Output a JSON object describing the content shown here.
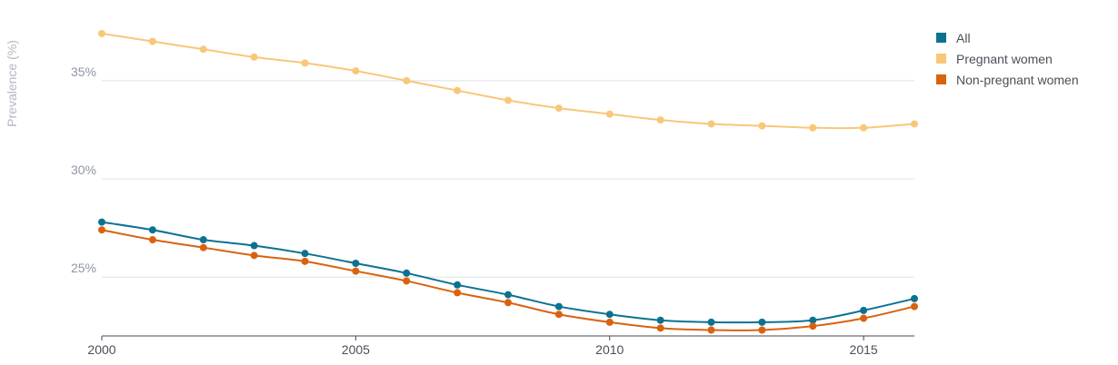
{
  "chart_data": {
    "type": "line",
    "title": "",
    "xlabel": "",
    "ylabel": "Prevalence (%)",
    "x": [
      2000,
      2001,
      2002,
      2003,
      2004,
      2005,
      2006,
      2007,
      2008,
      2009,
      2010,
      2011,
      2012,
      2013,
      2014,
      2015,
      2016
    ],
    "xlim": [
      2000,
      2016
    ],
    "ylim": [
      22.0,
      38.0
    ],
    "x_ticks": [
      2000,
      2005,
      2010,
      2015
    ],
    "x_tick_labels": [
      "2000",
      "2005",
      "2010",
      "2015"
    ],
    "y_ticks": [
      25,
      30,
      35
    ],
    "y_tick_labels": [
      "25%",
      "30%",
      "35%"
    ],
    "grid": true,
    "legend_position": "top-right",
    "series": [
      {
        "name": "All",
        "color": "#0d7291",
        "values": [
          27.8,
          27.4,
          26.9,
          26.6,
          26.2,
          25.7,
          25.2,
          24.6,
          24.1,
          23.5,
          23.1,
          22.8,
          22.7,
          22.7,
          22.8,
          23.3,
          23.9
        ]
      },
      {
        "name": "Pregnant women",
        "color": "#f8c77a",
        "values": [
          37.4,
          37.0,
          36.6,
          36.2,
          35.9,
          35.5,
          35.0,
          34.5,
          34.0,
          33.6,
          33.3,
          33.0,
          32.8,
          32.7,
          32.6,
          32.6,
          32.8
        ]
      },
      {
        "name": "Non-pregnant women",
        "color": "#d9620f",
        "values": [
          27.4,
          26.9,
          26.5,
          26.1,
          25.8,
          25.3,
          24.8,
          24.2,
          23.7,
          23.1,
          22.7,
          22.4,
          22.3,
          22.3,
          22.5,
          22.9,
          23.5
        ]
      }
    ]
  }
}
